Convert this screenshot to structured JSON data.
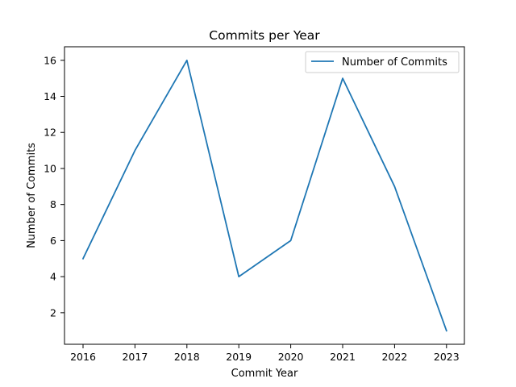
{
  "chart_data": {
    "type": "line",
    "title": "Commits per Year",
    "xlabel": "Commit Year",
    "ylabel": "Number of Commits",
    "x": [
      "2016",
      "2017",
      "2018",
      "2019",
      "2020",
      "2021",
      "2022",
      "2023"
    ],
    "series": [
      {
        "name": "Number of Commits",
        "values": [
          5,
          11,
          16,
          4,
          6,
          15,
          9,
          1
        ],
        "color": "#1f77b4"
      }
    ],
    "yticks": [
      2,
      4,
      6,
      8,
      10,
      12,
      14,
      16
    ],
    "ylim": [
      0.25,
      16.75
    ],
    "grid": false,
    "legend_position": "top-right"
  }
}
